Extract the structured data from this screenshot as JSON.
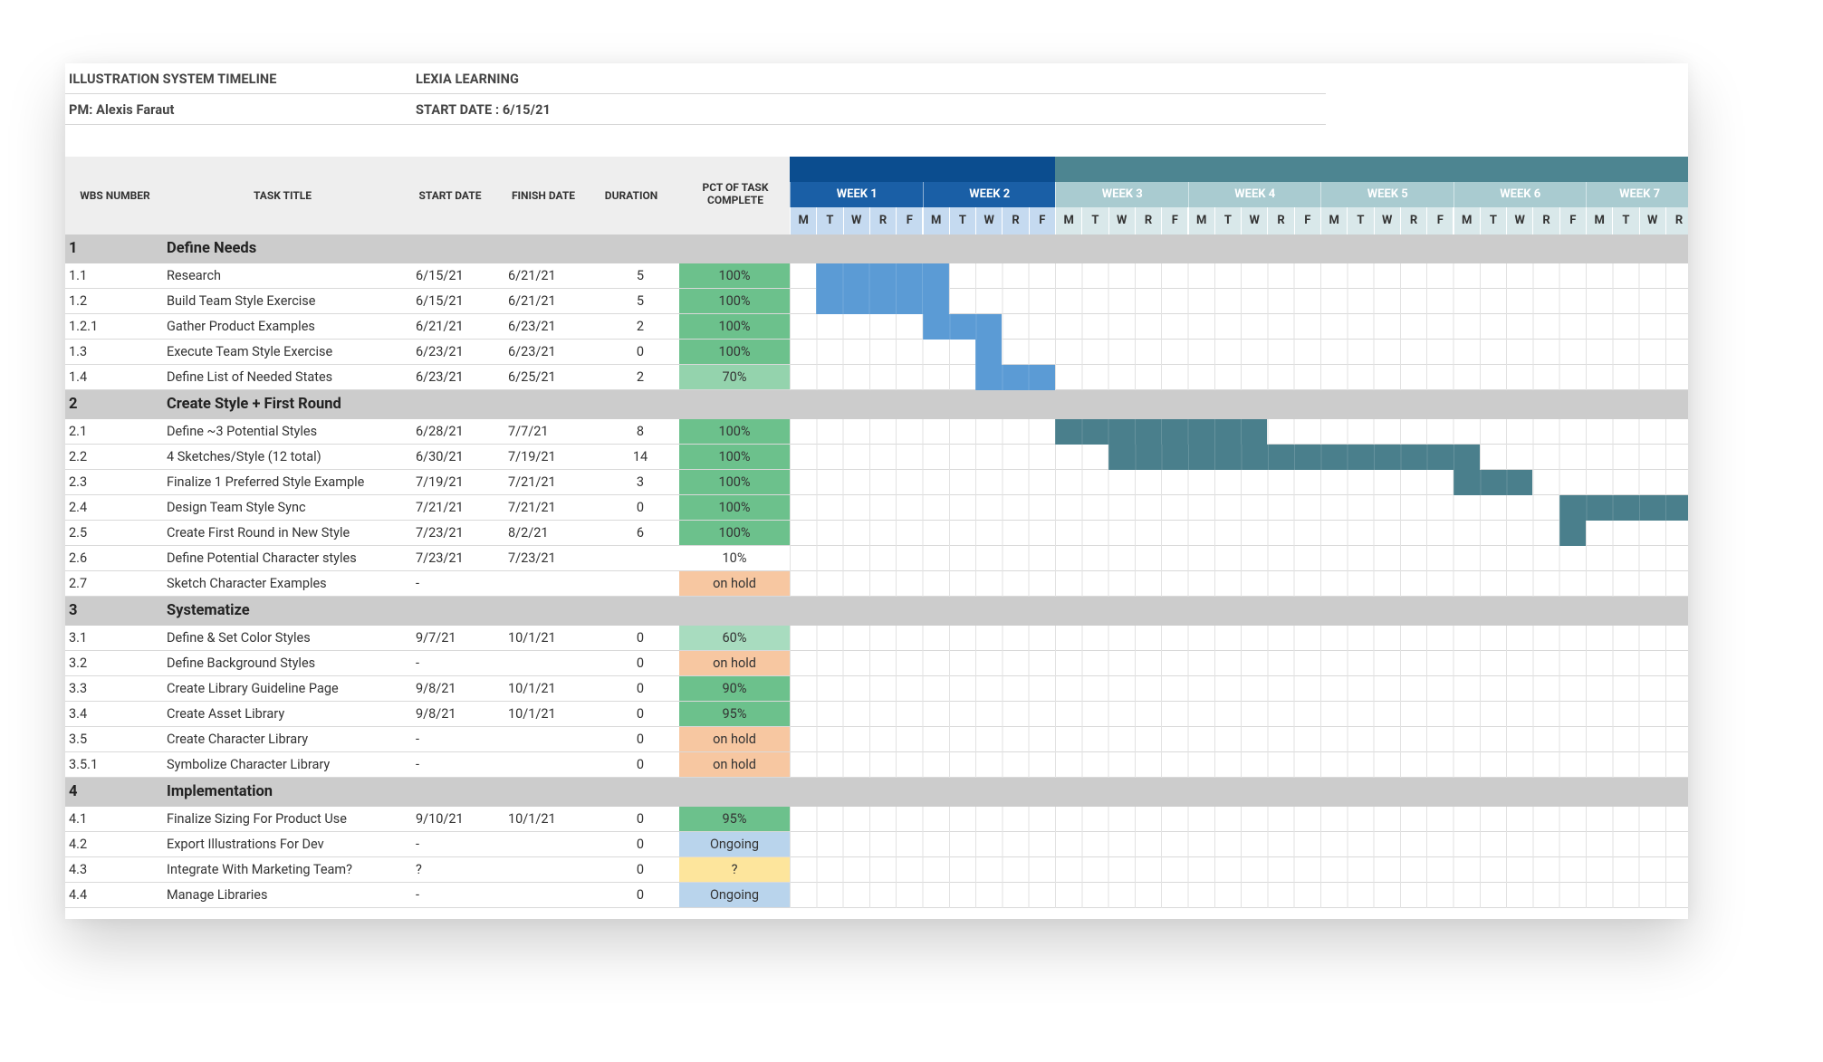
{
  "header": {
    "title": "ILLUSTRATION SYSTEM TIMELINE",
    "company": "LEXIA LEARNING",
    "pm": "PM: Alexis Faraut",
    "start_date": "START DATE : 6/15/21"
  },
  "columns": {
    "wbs": "WBS NUMBER",
    "task": "TASK TITLE",
    "start": "START DATE",
    "finish": "FINISH DATE",
    "duration": "DURATION",
    "pct_line1": "PCT OF TASK",
    "pct_line2": "COMPLETE"
  },
  "weeks": [
    "WEEK 1",
    "WEEK 2",
    "WEEK 3",
    "WEEK 4",
    "WEEK 5",
    "WEEK 6",
    "WEEK 7"
  ],
  "days": [
    "M",
    "T",
    "W",
    "R",
    "F"
  ],
  "week7_days": [
    "M",
    "T",
    "W",
    "R"
  ],
  "colors": {
    "blue_bar": "#5b9bd5",
    "teal_bar": "#4a7f8c",
    "week_blue": "#0b4d8f",
    "week_blue_light": "#1a5fa6",
    "week_teal": "#4d8591",
    "week_teal_light": "#a9cbd0",
    "day_blue": "#c5daf0",
    "day_teal": "#d9e8ea",
    "section_bg": "#cccccc",
    "green": "#6cc18c",
    "green_light": "#94d3ad",
    "green_pale": "#a8dcbf",
    "orange": "#f7c7a1",
    "lightblue": "#b9d4ec",
    "yellow": "#fde59c"
  },
  "rows": [
    {
      "type": "section",
      "wbs": "1",
      "task": "Define Needs"
    },
    {
      "type": "task",
      "wbs": "1.1",
      "task": "Research",
      "start": "6/15/21",
      "finish": "6/21/21",
      "duration": "5",
      "pct": "100%",
      "pct_color": "green",
      "bar": {
        "start": 1,
        "len": 5,
        "color": "blue"
      }
    },
    {
      "type": "task",
      "wbs": "1.2",
      "task": "Build Team Style Exercise",
      "start": "6/15/21",
      "finish": "6/21/21",
      "duration": "5",
      "pct": "100%",
      "pct_color": "green",
      "bar": {
        "start": 1,
        "len": 5,
        "color": "blue"
      }
    },
    {
      "type": "task",
      "wbs": "1.2.1",
      "task": "Gather Product Examples",
      "start": "6/21/21",
      "finish": "6/23/21",
      "duration": "2",
      "pct": "100%",
      "pct_color": "green",
      "bar": {
        "start": 5,
        "len": 3,
        "color": "blue"
      }
    },
    {
      "type": "task",
      "wbs": "1.3",
      "task": "Execute Team Style Exercise",
      "start": "6/23/21",
      "finish": "6/23/21",
      "duration": "0",
      "pct": "100%",
      "pct_color": "green",
      "bar": {
        "start": 7,
        "len": 1,
        "color": "blue"
      }
    },
    {
      "type": "task",
      "wbs": "1.4",
      "task": "Define List of Needed States",
      "start": "6/23/21",
      "finish": "6/25/21",
      "duration": "2",
      "pct": "70%",
      "pct_color": "green_light",
      "bar": {
        "start": 7,
        "len": 3,
        "color": "blue"
      }
    },
    {
      "type": "section",
      "wbs": "2",
      "task": "Create Style + First Round"
    },
    {
      "type": "task",
      "wbs": "2.1",
      "task": "Define ~3 Potential Styles",
      "start": "6/28/21",
      "finish": "7/7/21",
      "duration": "8",
      "pct": "100%",
      "pct_color": "green",
      "bar": {
        "start": 10,
        "len": 8,
        "color": "teal"
      }
    },
    {
      "type": "task",
      "wbs": "2.2",
      "task": "4 Sketches/Style (12 total)",
      "start": "6/30/21",
      "finish": "7/19/21",
      "duration": "14",
      "pct": "100%",
      "pct_color": "green",
      "bar": {
        "start": 12,
        "len": 14,
        "color": "teal"
      }
    },
    {
      "type": "task",
      "wbs": "2.3",
      "task": "Finalize 1 Preferred Style Example",
      "start": "7/19/21",
      "finish": "7/21/21",
      "duration": "3",
      "pct": "100%",
      "pct_color": "green",
      "bar": {
        "start": 25,
        "len": 3,
        "color": "teal"
      }
    },
    {
      "type": "task",
      "wbs": "2.4",
      "task": "Design Team Style Sync",
      "start": "7/21/21",
      "finish": "7/21/21",
      "duration": "0",
      "pct": "100%",
      "pct_color": "green",
      "bar": {
        "start": 29,
        "len": 5,
        "color": "teal"
      }
    },
    {
      "type": "task",
      "wbs": "2.5",
      "task": "Create First Round in New Style",
      "start": "7/23/21",
      "finish": "8/2/21",
      "duration": "6",
      "pct": "100%",
      "pct_color": "green",
      "bar": {
        "start": 29,
        "len": 1,
        "color": "teal"
      }
    },
    {
      "type": "task",
      "wbs": "2.6",
      "task": "Define Potential Character styles",
      "start": "7/23/21",
      "finish": "7/23/21",
      "duration": "",
      "pct": "10%",
      "pct_color": "none"
    },
    {
      "type": "task",
      "wbs": "2.7",
      "task": "Sketch Character Examples",
      "start": "-",
      "finish": "",
      "duration": "",
      "pct": "on hold",
      "pct_color": "orange"
    },
    {
      "type": "section",
      "wbs": "3",
      "task": "Systematize"
    },
    {
      "type": "task",
      "wbs": "3.1",
      "task": "Define & Set Color Styles",
      "start": "9/7/21",
      "finish": "10/1/21",
      "duration": "0",
      "pct": "60%",
      "pct_color": "green_pale"
    },
    {
      "type": "task",
      "wbs": "3.2",
      "task": "Define Background Styles",
      "start": "-",
      "finish": "",
      "duration": "0",
      "pct": "on hold",
      "pct_color": "orange"
    },
    {
      "type": "task",
      "wbs": "3.3",
      "task": "Create Library Guideline Page",
      "start": "9/8/21",
      "finish": "10/1/21",
      "duration": "0",
      "pct": "90%",
      "pct_color": "green"
    },
    {
      "type": "task",
      "wbs": "3.4",
      "task": "Create Asset Library",
      "start": "9/8/21",
      "finish": "10/1/21",
      "duration": "0",
      "pct": "95%",
      "pct_color": "green"
    },
    {
      "type": "task",
      "wbs": "3.5",
      "task": "Create Character Library",
      "start": "-",
      "finish": "",
      "duration": "0",
      "pct": "on hold",
      "pct_color": "orange"
    },
    {
      "type": "task",
      "wbs": "3.5.1",
      "task": "Symbolize Character Library",
      "start": "-",
      "finish": "",
      "duration": "0",
      "pct": "on hold",
      "pct_color": "orange"
    },
    {
      "type": "section",
      "wbs": "4",
      "task": "Implementation"
    },
    {
      "type": "task",
      "wbs": "4.1",
      "task": "Finalize Sizing For Product Use",
      "start": "9/10/21",
      "finish": "10/1/21",
      "duration": "0",
      "pct": "95%",
      "pct_color": "green"
    },
    {
      "type": "task",
      "wbs": "4.2",
      "task": "Export Illustrations For Dev",
      "start": "-",
      "finish": "",
      "duration": "0",
      "pct": "Ongoing",
      "pct_color": "lightblue"
    },
    {
      "type": "task",
      "wbs": "4.3",
      "task": "Integrate With Marketing Team?",
      "start": "?",
      "finish": "",
      "duration": "0",
      "pct": "?",
      "pct_color": "yellow"
    },
    {
      "type": "task",
      "wbs": "4.4",
      "task": "Manage Libraries",
      "start": "-",
      "finish": "",
      "duration": "0",
      "pct": "Ongoing",
      "pct_color": "lightblue"
    }
  ]
}
